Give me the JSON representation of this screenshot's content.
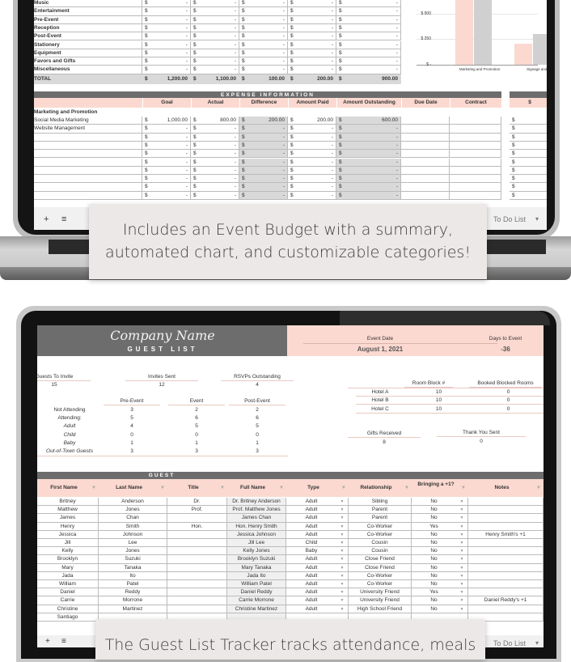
{
  "budget_summary": {
    "rows": [
      {
        "label": "Music",
        "values": [
          "-",
          "-",
          "-",
          "-",
          "-"
        ]
      },
      {
        "label": "Entertainment",
        "values": [
          "-",
          "-",
          "-",
          "-",
          "-"
        ]
      },
      {
        "label": "Pre-Event",
        "values": [
          "-",
          "-",
          "-",
          "-",
          "-"
        ]
      },
      {
        "label": "Reception",
        "values": [
          "-",
          "-",
          "-",
          "-",
          "-"
        ]
      },
      {
        "label": "Post-Event",
        "values": [
          "-",
          "-",
          "-",
          "-",
          "-"
        ]
      },
      {
        "label": "Stationery",
        "values": [
          "-",
          "-",
          "-",
          "-",
          "-"
        ]
      },
      {
        "label": "Equipment",
        "values": [
          "-",
          "-",
          "-",
          "-",
          "-"
        ]
      },
      {
        "label": "Favors and Gifts",
        "values": [
          "-",
          "-",
          "-",
          "-",
          "-"
        ]
      },
      {
        "label": "Miscellaneous",
        "values": [
          "-",
          "-",
          "-",
          "-",
          "-"
        ]
      }
    ],
    "total": {
      "label": "TOTAL",
      "values": [
        "1,200.00",
        "1,100.00",
        "100.00",
        "200.00",
        "900.00"
      ]
    },
    "currency": "$"
  },
  "chart_data": {
    "type": "bar",
    "categories": [
      "Marketing and Promotion",
      "Signage and D"
    ],
    "series": [
      {
        "color": "#fbd9d0",
        "values": [
          1000,
          200
        ]
      },
      {
        "color": "#d0d0d0",
        "values": [
          800,
          300
        ]
      }
    ],
    "y_ticks": [
      "$ 500",
      "$ 250",
      "$ -"
    ],
    "grid": true
  },
  "expense": {
    "title": "EXPENSE INFORMATION",
    "headers": [
      "Goal",
      "Actual",
      "Difference",
      "Amount Paid",
      "Amount Outstanding",
      "Due Date",
      "Contract"
    ],
    "side_header": "$",
    "category": "Marketing and Promotion",
    "rows": [
      {
        "label": "Social Media Marketing",
        "values": [
          "1,000.00",
          "800.00",
          "200.00",
          "200.00",
          "600.00"
        ]
      },
      {
        "label": "Website Management",
        "values": [
          "-",
          "-",
          "-",
          "-",
          "-"
        ]
      },
      {
        "label": "",
        "values": [
          "-",
          "-",
          "-",
          "-",
          "-"
        ]
      },
      {
        "label": "",
        "values": [
          "-",
          "-",
          "-",
          "-",
          "-"
        ]
      },
      {
        "label": "",
        "values": [
          "-",
          "-",
          "-",
          "-",
          "-"
        ]
      },
      {
        "label": "",
        "values": [
          "-",
          "-",
          "-",
          "-",
          "-"
        ]
      },
      {
        "label": "",
        "values": [
          "-",
          "-",
          "-",
          "-",
          "-"
        ]
      },
      {
        "label": "",
        "values": [
          "-",
          "-",
          "-",
          "-",
          "-"
        ]
      },
      {
        "label": "",
        "values": [
          "-",
          "-",
          "-",
          "-",
          "-"
        ]
      },
      {
        "label": "",
        "values": [
          "-",
          "-",
          "-",
          "-",
          "-"
        ]
      }
    ]
  },
  "status_bar": {
    "add": "+",
    "menu": "≡",
    "sheet_tab": "To Do List",
    "dropdown": "▾"
  },
  "caption1": {
    "line1": "Includes an Event Budget with a summary,",
    "line2": "automated chart, and customizable categories!"
  },
  "guest_list": {
    "company": "Company Name",
    "title": "GUEST LIST",
    "event_date_label": "Event Date",
    "event_date": "August 1, 2021",
    "days_label": "Days to Event",
    "days": "-36",
    "top_stats": [
      {
        "label": "Guests To Invite",
        "value": "15"
      },
      {
        "label": "Invites Sent",
        "value": "12"
      },
      {
        "label": "RSVPs Outstanding",
        "value": "4"
      }
    ],
    "attendance_headers": [
      "Pre-Event",
      "Event",
      "Post-Event"
    ],
    "attendance": [
      {
        "label": "Not Attending",
        "values": [
          "3",
          "2",
          "2"
        ],
        "style": "normal"
      },
      {
        "label": "Attending:",
        "values": [
          "5",
          "6",
          "6"
        ],
        "style": "normal"
      },
      {
        "label": "Adult",
        "values": [
          "4",
          "5",
          "5"
        ],
        "style": "italic"
      },
      {
        "label": "Child",
        "values": [
          "0",
          "0",
          "0"
        ],
        "style": "italic"
      },
      {
        "label": "Baby",
        "values": [
          "1",
          "1",
          "1"
        ],
        "style": "italic"
      },
      {
        "label": "Out-of-Town Guests",
        "values": [
          "3",
          "3",
          "3"
        ],
        "style": "italic"
      }
    ],
    "hotel_headers": [
      "Room Block #",
      "Booked Blocked Rooms"
    ],
    "hotels": [
      {
        "name": "Hotel A",
        "block": "10",
        "booked": "0"
      },
      {
        "name": "Hotel B",
        "block": "10",
        "booked": "0"
      },
      {
        "name": "Hotel C",
        "block": "10",
        "booked": "0"
      }
    ],
    "gifts_label": "Gifts Received",
    "gifts": "8",
    "thanks_label": "Thank You Sent",
    "thanks": "0",
    "guest_band": "GUEST",
    "columns": [
      "First Name",
      "Last Name",
      "Title",
      "Full Name",
      "Type",
      "Relationship",
      "Bringing a +1?",
      "Notes"
    ],
    "guests": [
      [
        "Britney",
        "Anderson",
        "Dr.",
        "Dr. Britney Anderson",
        "Adult",
        "Sibling",
        "No",
        ""
      ],
      [
        "Matthew",
        "Jones",
        "Prof.",
        "Prof. Matthew Jones",
        "Adult",
        "Parent",
        "No",
        ""
      ],
      [
        "James",
        "Chan",
        "",
        "James Chan",
        "Adult",
        "Parent",
        "No",
        ""
      ],
      [
        "Henry",
        "Smith",
        "Hon.",
        "Hon. Henry Smith",
        "Adult",
        "Co-Worker",
        "Yes",
        ""
      ],
      [
        "Jessica",
        "Johnson",
        "",
        "Jessica Johnson",
        "Adult",
        "Co-Worker",
        "No",
        "Henry Smith's +1"
      ],
      [
        "Jill",
        "Lee",
        "",
        "Jill Lee",
        "Child",
        "Cousin",
        "No",
        ""
      ],
      [
        "Kelly",
        "Jones",
        "",
        "Kelly Jones",
        "Baby",
        "Cousin",
        "No",
        ""
      ],
      [
        "Brooklyn",
        "Suzuki",
        "",
        "Brooklyn Suzuki",
        "Adult",
        "Close Friend",
        "No",
        ""
      ],
      [
        "Mary",
        "Tanaka",
        "",
        "Mary Tanaka",
        "Adult",
        "Close Friend",
        "No",
        ""
      ],
      [
        "Jada",
        "Ito",
        "",
        "Jada Ito",
        "Adult",
        "Co-Worker",
        "No",
        ""
      ],
      [
        "William",
        "Patel",
        "",
        "William Patel",
        "Adult",
        "Co-Worker",
        "No",
        ""
      ],
      [
        "Daniel",
        "Reddy",
        "",
        "Daniel Reddy",
        "Adult",
        "University Friend",
        "Yes",
        ""
      ],
      [
        "Carrie",
        "Morrone",
        "",
        "Carrie Morrone",
        "Adult",
        "University Friend",
        "No",
        "Daniel Reddy's +1"
      ],
      [
        "Christine",
        "Martinez",
        "",
        "Christine Martinez",
        "Adult",
        "High School Friend",
        "No",
        ""
      ],
      [
        "Santiago",
        "",
        "",
        "",
        "",
        "",
        "",
        ""
      ]
    ]
  },
  "caption2": {
    "line1": "The Guest List Tracker tracks attendance, meals"
  }
}
